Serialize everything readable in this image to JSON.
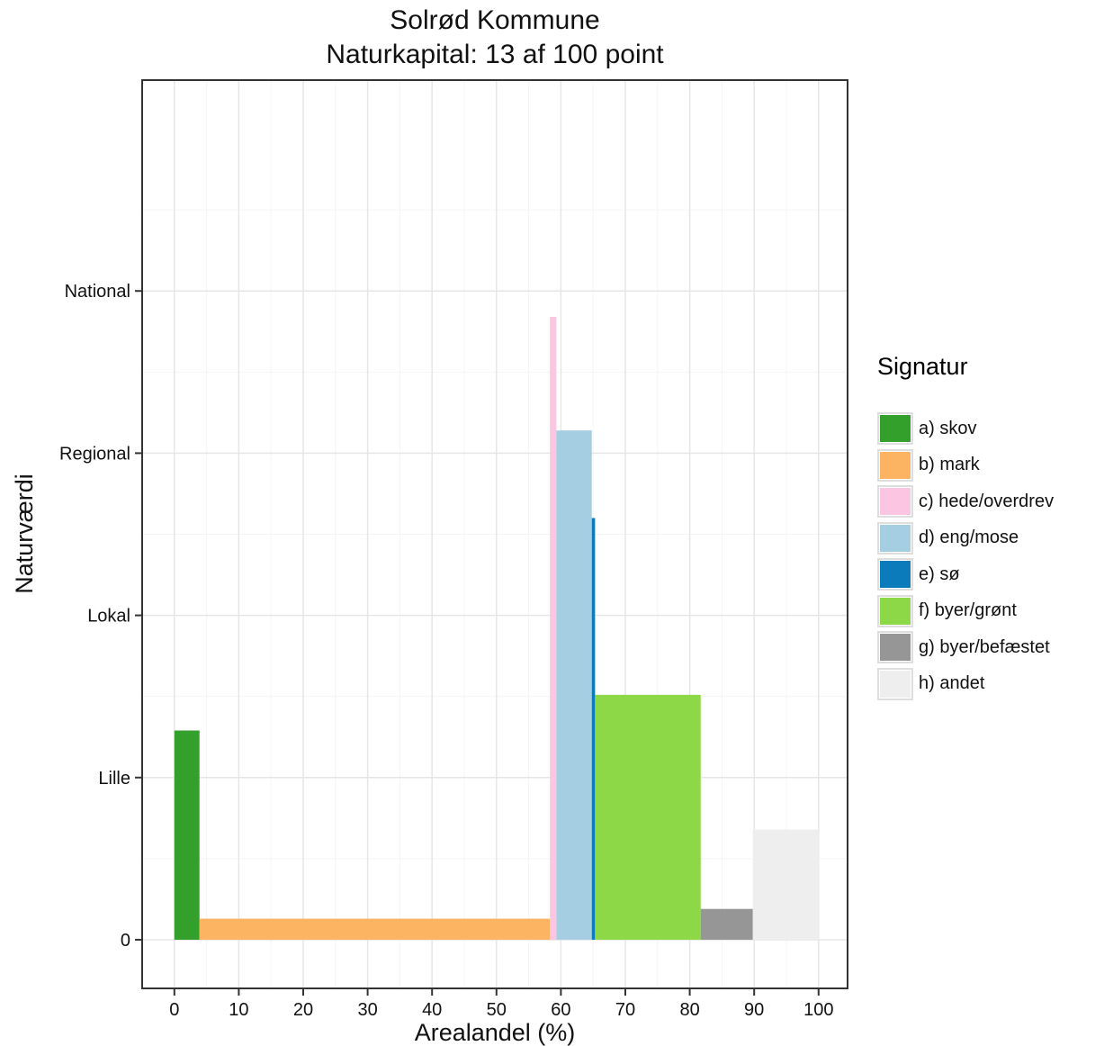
{
  "chart_data": {
    "type": "bar",
    "title": "Solrød Kommune",
    "subtitle": "Naturkapital: 13 af 100 point",
    "xlabel": "Arealandel (%)",
    "ylabel": "Naturværdi",
    "xlim": [
      -5,
      104.5
    ],
    "ylim": [
      -0.3,
      5.3
    ],
    "x_ticks": [
      "0",
      "10",
      "20",
      "30",
      "40",
      "50",
      "60",
      "70",
      "80",
      "90",
      "100"
    ],
    "y_ticks": [
      {
        "value": 0,
        "label": "0"
      },
      {
        "value": 1,
        "label": "Lille"
      },
      {
        "value": 2,
        "label": "Lokal"
      },
      {
        "value": 3,
        "label": "Regional"
      },
      {
        "value": 4,
        "label": "National"
      }
    ],
    "grid": true,
    "legend_title": "Signatur",
    "legend_position": "right",
    "series": [
      {
        "name": "a) skov",
        "color": "#33a02c",
        "x_start": 0,
        "x_end": 3.9,
        "value": 1.29
      },
      {
        "name": "b) mark",
        "color": "#fdb462",
        "x_start": 3.9,
        "x_end": 58.3,
        "value": 0.13
      },
      {
        "name": "c) hede/overdrev",
        "color": "#fcc5e1",
        "x_start": 58.3,
        "x_end": 59.3,
        "value": 3.84
      },
      {
        "name": "d) eng/mose",
        "color": "#a6cee3",
        "x_start": 59.3,
        "x_end": 64.8,
        "value": 3.14
      },
      {
        "name": "e) sø",
        "color": "#0b7bbc",
        "x_start": 64.8,
        "x_end": 65.3,
        "value": 2.6
      },
      {
        "name": "f) byer/grønt",
        "color": "#8dd846",
        "x_start": 65.3,
        "x_end": 81.7,
        "value": 1.51
      },
      {
        "name": "g) byer/befæstet",
        "color": "#969696",
        "x_start": 81.7,
        "x_end": 89.8,
        "value": 0.19
      },
      {
        "name": "h) andet",
        "color": "#eeeeee",
        "x_start": 89.8,
        "x_end": 100,
        "value": 0.68
      }
    ]
  }
}
